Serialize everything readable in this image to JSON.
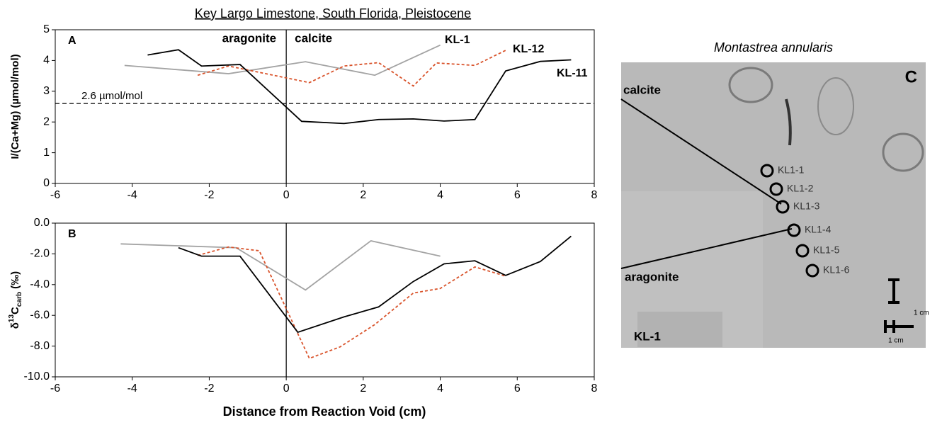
{
  "title": "Key Largo Limestone, South Florida, Pleistocene",
  "x_label": "Distance from Reaction Void (cm)",
  "chart_data": [
    {
      "type": "line",
      "panel": "A",
      "ylabel": {
        "main": "I/(Ca+Mg)  (µmol/mol)"
      },
      "xlim": [
        -6,
        8
      ],
      "xticks": [
        -6,
        -4,
        -2,
        0,
        2,
        4,
        6,
        8
      ],
      "ylim": [
        0,
        5
      ],
      "yticks": [
        0,
        1,
        2,
        3,
        4,
        5
      ],
      "threshold": {
        "value": 2.6,
        "label": "2.6 µmol/mol"
      },
      "zone_labels": [
        "aragonite",
        "calcite"
      ],
      "series": [
        {
          "name": "KL-1",
          "color": "#a3a3a3",
          "style": "solid",
          "x": [
            -4.2,
            -1.5,
            0.5,
            2.3,
            4.0
          ],
          "values": [
            3.84,
            3.57,
            3.96,
            3.52,
            4.5
          ]
        },
        {
          "name": "KL-12",
          "color": "#d9532b",
          "style": "dashed",
          "x": [
            -2.3,
            -1.5,
            0.6,
            1.5,
            2.4,
            3.3,
            3.9,
            4.9,
            5.7
          ],
          "values": [
            3.52,
            3.82,
            3.28,
            3.82,
            3.93,
            3.17,
            3.92,
            3.84,
            4.33
          ]
        },
        {
          "name": "KL-11",
          "color": "#000000",
          "style": "solid",
          "x": [
            -3.6,
            -2.8,
            -2.2,
            -1.2,
            0.4,
            1.5,
            2.4,
            3.3,
            4.1,
            4.9,
            5.7,
            6.6,
            7.4
          ],
          "values": [
            4.18,
            4.35,
            3.82,
            3.87,
            2.02,
            1.95,
            2.08,
            2.1,
            2.03,
            2.08,
            3.66,
            3.97,
            4.02
          ]
        }
      ]
    },
    {
      "type": "line",
      "panel": "B",
      "ylabel": {
        "prefix": "δ",
        "sup": "13",
        "main": "C",
        "sub": "carb",
        "suffix": " (‰)"
      },
      "xlim": [
        -6,
        8
      ],
      "xticks": [
        -6,
        -4,
        -2,
        0,
        2,
        4,
        6,
        8
      ],
      "ylim": [
        -10,
        0
      ],
      "yticks": [
        {
          "value": 0,
          "label": "0.0"
        },
        {
          "value": -2,
          "label": "-2.0"
        },
        {
          "value": -4,
          "label": "-4.0"
        },
        {
          "value": -6,
          "label": "-6.0"
        },
        {
          "value": -8,
          "label": "-8.0"
        },
        {
          "value": -10,
          "label": "-10.0"
        }
      ],
      "series": [
        {
          "color": "#a3a3a3",
          "style": "solid",
          "x": [
            -4.3,
            -1.3,
            0.5,
            2.2,
            4.0
          ],
          "values": [
            -1.35,
            -1.6,
            -4.35,
            -1.15,
            -2.15
          ]
        },
        {
          "color": "#d9532b",
          "style": "dashed",
          "x": [
            -2.3,
            -1.5,
            -0.7,
            0.6,
            1.4,
            2.3,
            3.3,
            4.0,
            4.9,
            5.7
          ],
          "values": [
            -2.1,
            -1.55,
            -1.8,
            -8.8,
            -8.05,
            -6.6,
            -4.55,
            -4.25,
            -2.85,
            -3.45
          ]
        },
        {
          "color": "#000000",
          "style": "solid",
          "x": [
            -2.8,
            -2.2,
            -1.2,
            0.3,
            1.5,
            2.4,
            3.3,
            4.1,
            4.9,
            5.7,
            6.6,
            7.4
          ],
          "values": [
            -1.6,
            -2.15,
            -2.15,
            -7.1,
            -6.1,
            -5.45,
            -3.8,
            -2.65,
            -2.45,
            -3.4,
            -2.5,
            -0.85
          ]
        }
      ]
    }
  ],
  "panel_c": {
    "title": "Montastrea annularis",
    "panel": "C",
    "specimen": "KL-1",
    "zone_labels": [
      "calcite",
      "aragonite"
    ],
    "samples": [
      "KL1-1",
      "KL1-2",
      "KL1-3",
      "KL1-4",
      "KL1-5",
      "KL1-6"
    ],
    "scale_labels": [
      "1 cm",
      "1 cm"
    ]
  }
}
